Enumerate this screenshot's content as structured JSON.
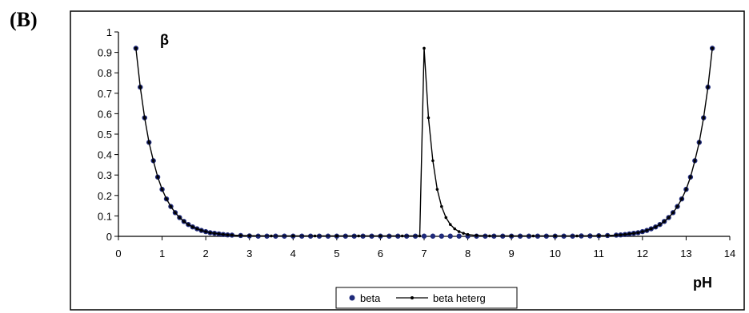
{
  "panel_label": "(B)",
  "chart_data": {
    "type": "line",
    "title": "",
    "ylabel": "β",
    "xlabel": "pH",
    "xlim": [
      0,
      14
    ],
    "ylim": [
      0,
      1
    ],
    "xticks": [
      "0",
      "1",
      "2",
      "3",
      "4",
      "5",
      "6",
      "7",
      "8",
      "9",
      "10",
      "11",
      "12",
      "13",
      "14"
    ],
    "yticks": [
      "0",
      "0.1",
      "0.2",
      "0.3",
      "0.4",
      "0.5",
      "0.6",
      "0.7",
      "0.8",
      "0.9",
      "1"
    ],
    "grid": false,
    "legend_position": "bottom-center",
    "series": [
      {
        "name": "beta",
        "style": "markers",
        "color": "#1f2a7a",
        "x": [
          0.4,
          0.5,
          0.6,
          0.7,
          0.8,
          0.9,
          1.0,
          1.1,
          1.2,
          1.3,
          1.4,
          1.5,
          1.6,
          1.7,
          1.8,
          1.9,
          2.0,
          2.1,
          2.2,
          2.3,
          2.4,
          2.5,
          2.6,
          2.8,
          3.0,
          3.2,
          3.4,
          3.6,
          3.8,
          4.0,
          4.2,
          4.4,
          4.6,
          4.8,
          5.0,
          5.2,
          5.4,
          5.6,
          5.8,
          6.0,
          6.2,
          6.4,
          6.6,
          6.8,
          7.0,
          7.2,
          7.4,
          7.6,
          7.8,
          8.0,
          8.2,
          8.4,
          8.6,
          8.8,
          9.0,
          9.2,
          9.4,
          9.6,
          9.8,
          10.0,
          10.2,
          10.4,
          10.6,
          10.8,
          11.0,
          11.2,
          11.4,
          11.5,
          11.6,
          11.7,
          11.8,
          11.9,
          12.0,
          12.1,
          12.2,
          12.3,
          12.4,
          12.5,
          12.6,
          12.7,
          12.8,
          12.9,
          13.0,
          13.1,
          13.2,
          13.3,
          13.4,
          13.5,
          13.6
        ],
        "y": [
          0.92,
          0.73,
          0.58,
          0.46,
          0.37,
          0.29,
          0.23,
          0.183,
          0.146,
          0.116,
          0.092,
          0.073,
          0.058,
          0.046,
          0.037,
          0.029,
          0.023,
          0.018,
          0.015,
          0.012,
          0.009,
          0.007,
          0.006,
          0.004,
          0.002,
          0.001,
          0.001,
          0.001,
          0.001,
          0.001,
          0.001,
          0.001,
          0.001,
          0.001,
          0.001,
          0.001,
          0.001,
          0.001,
          0.001,
          0.001,
          0.001,
          0.001,
          0.001,
          0.001,
          0.001,
          0.001,
          0.001,
          0.001,
          0.001,
          0.001,
          0.001,
          0.001,
          0.001,
          0.001,
          0.001,
          0.001,
          0.001,
          0.001,
          0.001,
          0.001,
          0.001,
          0.001,
          0.002,
          0.002,
          0.003,
          0.004,
          0.006,
          0.007,
          0.009,
          0.012,
          0.015,
          0.018,
          0.023,
          0.029,
          0.037,
          0.046,
          0.058,
          0.073,
          0.092,
          0.116,
          0.146,
          0.183,
          0.23,
          0.29,
          0.37,
          0.46,
          0.58,
          0.73,
          0.92
        ]
      },
      {
        "name": "beta heterg",
        "style": "line-markers",
        "color": "#000000",
        "x": [
          0.4,
          0.5,
          0.6,
          0.7,
          0.8,
          0.9,
          1.0,
          1.1,
          1.2,
          1.3,
          1.4,
          1.5,
          1.6,
          1.7,
          1.8,
          1.9,
          2.0,
          2.1,
          2.2,
          2.3,
          2.4,
          2.5,
          2.6,
          2.8,
          3.0,
          3.5,
          4.0,
          4.5,
          5.0,
          5.5,
          6.0,
          6.5,
          6.9,
          7.0,
          7.1,
          7.2,
          7.3,
          7.4,
          7.5,
          7.6,
          7.7,
          7.8,
          7.9,
          8.0,
          8.2,
          8.5,
          9.0,
          9.5,
          10.0,
          10.5,
          11.0,
          11.2,
          11.4,
          11.5,
          11.6,
          11.7,
          11.8,
          11.9,
          12.0,
          12.1,
          12.2,
          12.3,
          12.4,
          12.5,
          12.6,
          12.7,
          12.8,
          12.9,
          13.0,
          13.1,
          13.2,
          13.3,
          13.4,
          13.5,
          13.6
        ],
        "y": [
          0.92,
          0.73,
          0.58,
          0.46,
          0.37,
          0.29,
          0.23,
          0.183,
          0.146,
          0.116,
          0.092,
          0.073,
          0.058,
          0.046,
          0.037,
          0.029,
          0.023,
          0.018,
          0.015,
          0.012,
          0.009,
          0.007,
          0.006,
          0.004,
          0.003,
          0.002,
          0.002,
          0.002,
          0.002,
          0.002,
          0.002,
          0.002,
          0.002,
          0.92,
          0.58,
          0.37,
          0.23,
          0.146,
          0.092,
          0.058,
          0.037,
          0.023,
          0.015,
          0.009,
          0.004,
          0.002,
          0.002,
          0.002,
          0.002,
          0.002,
          0.003,
          0.004,
          0.006,
          0.007,
          0.009,
          0.012,
          0.015,
          0.018,
          0.023,
          0.029,
          0.037,
          0.046,
          0.058,
          0.073,
          0.092,
          0.116,
          0.146,
          0.183,
          0.23,
          0.29,
          0.37,
          0.46,
          0.58,
          0.73,
          0.92
        ]
      }
    ]
  }
}
